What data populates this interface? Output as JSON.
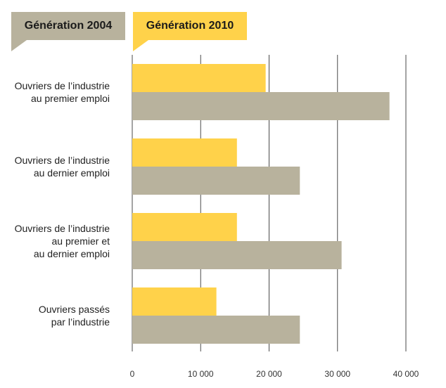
{
  "chart_data": {
    "type": "bar",
    "orientation": "horizontal",
    "categories": [
      [
        "Ouvriers de l’industrie",
        "au premier emploi"
      ],
      [
        "Ouvriers de l’industrie",
        "au dernier emploi"
      ],
      [
        "Ouvriers de l’industrie",
        "au premier et",
        "au dernier emploi"
      ],
      [
        "Ouvriers passés",
        "par l’industrie"
      ]
    ],
    "series": [
      {
        "name": "Génération 2010",
        "color": "#ffd24a",
        "values": [
          19500,
          15300,
          15300,
          12300
        ]
      },
      {
        "name": "Génération 2004",
        "color": "#b8b29d",
        "values": [
          37600,
          24500,
          30600,
          24500
        ]
      }
    ],
    "xlim": [
      0,
      40000
    ],
    "xticks": [
      0,
      10000,
      20000,
      30000,
      40000
    ],
    "xtick_labels": [
      "0",
      "10 000",
      "20 000",
      "30 000",
      "40 000"
    ],
    "grid": "vertical",
    "legend_placement": "top-left"
  },
  "legend": {
    "g2004": "Génération 2004",
    "g2010": "Génération 2010"
  },
  "colors": {
    "yellow": "#ffd24a",
    "taupe": "#b8b29d",
    "grid": "#4a4a4a"
  }
}
